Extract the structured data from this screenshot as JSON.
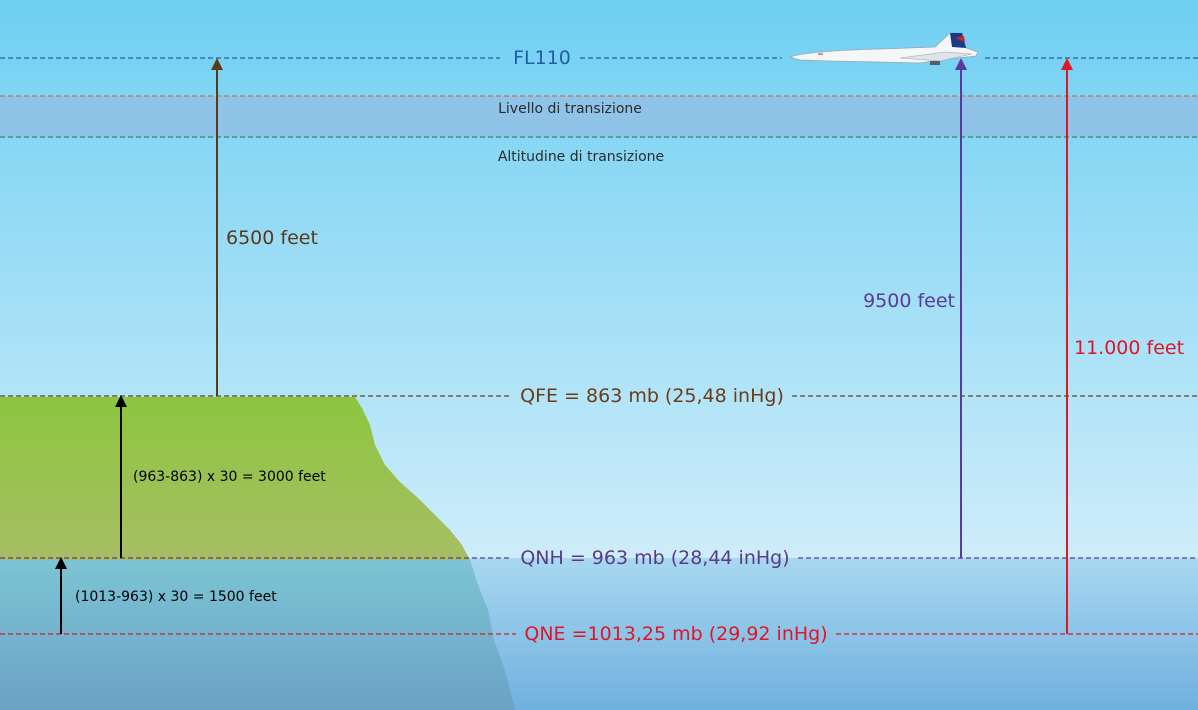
{
  "levels": {
    "fl110": {
      "label": "FL110",
      "color": "#1f5fa8"
    },
    "transition_level": {
      "label": "Livello di transizione",
      "color": "#c0745a"
    },
    "transition_altitude": {
      "label": "Altitudine di transizione",
      "color": "#2e8a6a"
    },
    "qfe": {
      "label": "QFE = 863 mb (25,48 inHg)",
      "color": "#6b3d1a"
    },
    "qnh": {
      "label": "QNH = 963 mb (28,44 inHg)",
      "color": "#5a3a8a"
    },
    "qne": {
      "label": "QNE =1013,25 mb (29,92 inHg)",
      "color": "#e0152a"
    }
  },
  "measurements": {
    "qfe_to_fl": {
      "label": "6500 feet",
      "color": "#5a3a1a"
    },
    "qnh_to_fl": {
      "label": "9500 feet",
      "color": "#5a3a9a"
    },
    "qne_to_fl": {
      "label": "11.000 feet",
      "color": "#e0152a"
    },
    "qnh_to_qfe": {
      "label": "(963-863) x 30 = 3000 feet",
      "color": "#000000"
    },
    "qne_to_qnh": {
      "label": "(1013-963) x 30 = 1500 feet",
      "color": "#000000"
    }
  },
  "colors": {
    "sky_top": "#6fcff2",
    "sky_bottom": "#e8f5fc",
    "transition_band": "#8fc3e8",
    "ground_top": "#8cc63f",
    "ground_bottom": "#a7be64",
    "sea_top": "#7cc4d3",
    "sea_bottom": "#6ba2c6",
    "ocean_top": "#a8d8f0",
    "ocean_bottom": "#6fb0de"
  },
  "icons": {
    "aircraft": "concorde-aircraft-icon"
  }
}
